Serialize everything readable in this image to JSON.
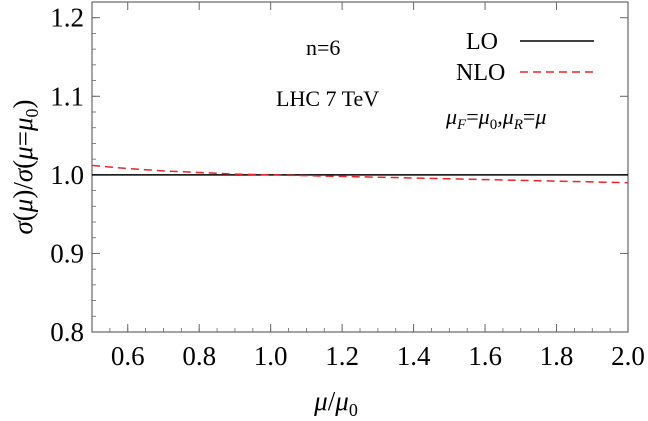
{
  "chart_data": {
    "type": "line",
    "xlim": [
      0.5,
      2.0
    ],
    "ylim": [
      0.8,
      1.22
    ],
    "xticks": [
      0.6,
      0.8,
      1.0,
      1.2,
      1.4,
      1.6,
      1.8,
      2.0
    ],
    "xtick_labels": [
      "0.6",
      "0.8",
      "1.0",
      "1.2",
      "1.4",
      "1.6",
      "1.8",
      "2.0"
    ],
    "yticks": [
      0.8,
      0.9,
      1.0,
      1.1,
      1.2
    ],
    "ytick_labels": [
      "0.8",
      "0.9",
      "1.0",
      "1.1",
      "1.2"
    ],
    "xlabel_parts": [
      "μ",
      "/",
      "μ",
      "0"
    ],
    "ylabel_parts": [
      "σ",
      "(",
      "μ",
      ")/",
      "σ",
      "(",
      "μ",
      "=",
      "μ",
      "0",
      ")"
    ],
    "grid": false,
    "legend_placement": "top-right",
    "annotations": {
      "n": "n=6",
      "energy": "LHC 7 TeV",
      "scales": [
        "μ",
        "F",
        "=",
        "μ",
        "0",
        ",",
        "μ",
        "R",
        "=",
        "μ"
      ]
    },
    "series": [
      {
        "name": "LO",
        "color": "#000000",
        "style": "solid",
        "x": [
          0.5,
          2.0
        ],
        "y": [
          1.0,
          1.0
        ]
      },
      {
        "name": "NLO",
        "color": "#e8262b",
        "style": "dashed",
        "x": [
          0.5,
          0.6,
          0.7,
          0.8,
          0.9,
          1.0,
          1.1,
          1.2,
          1.3,
          1.4,
          1.5,
          1.6,
          1.7,
          1.8,
          1.9,
          2.0
        ],
        "y": [
          1.012,
          1.008,
          1.005,
          1.003,
          1.001,
          1.0,
          0.999,
          0.998,
          0.997,
          0.996,
          0.995,
          0.994,
          0.993,
          0.992,
          0.991,
          0.99
        ]
      }
    ]
  }
}
